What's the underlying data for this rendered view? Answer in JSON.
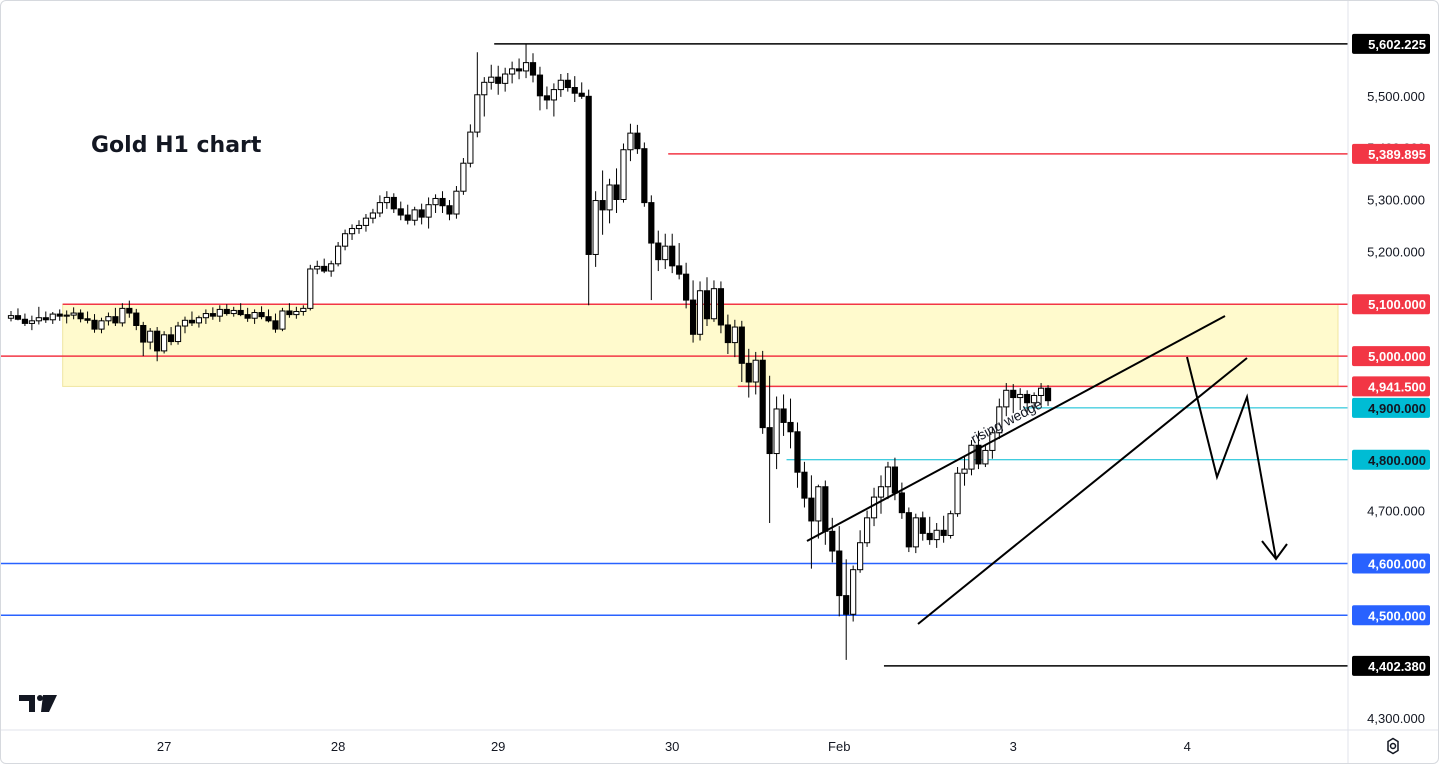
{
  "chart_data": {
    "type": "candlestick",
    "title": "Gold H1 chart",
    "timeframe": "H1",
    "y_axis": {
      "ticks": [
        {
          "value": 5500,
          "label": "5,500.000"
        },
        {
          "value": 5400,
          "label": "5,400.000"
        },
        {
          "value": 5300,
          "label": "5,300.000"
        },
        {
          "value": 5200,
          "label": "5,200.000"
        },
        {
          "value": 4700,
          "label": "4,700.000"
        },
        {
          "value": 4300,
          "label": "4,300.000"
        }
      ]
    },
    "x_axis": {
      "ticks": [
        {
          "index": 22,
          "label": "27"
        },
        {
          "index": 47,
          "label": "28"
        },
        {
          "index": 70,
          "label": "29"
        },
        {
          "index": 95,
          "label": "30"
        },
        {
          "index": 119,
          "label": "Feb"
        },
        {
          "index": 144,
          "label": "3"
        },
        {
          "index": 169,
          "label": "4"
        }
      ]
    },
    "price_levels": [
      {
        "value": 5602.225,
        "label": "5,602.225",
        "color": "#000000",
        "start_index": 70
      },
      {
        "value": 5389.895,
        "label": "5,389.895",
        "color": "#f23645",
        "start_index": 95
      },
      {
        "value": 5100.0,
        "label": "5,100.000",
        "color": "#f23645",
        "start_index": 8
      },
      {
        "value": 5000.0,
        "label": "5,000.000",
        "color": "#f23645",
        "start_index": 0
      },
      {
        "value": 4941.5,
        "label": "4,941.500",
        "color": "#f23645",
        "start_index": 105
      },
      {
        "value": 4900.0,
        "label": "4,900.000",
        "color": "#00bcd4",
        "start_index": 146
      },
      {
        "value": 4800.0,
        "label": "4,800.000",
        "color": "#00bcd4",
        "start_index": 112
      },
      {
        "value": 4600.0,
        "label": "4,600.000",
        "color": "#2962ff",
        "start_index": 0
      },
      {
        "value": 4500.0,
        "label": "4,500.000",
        "color": "#2962ff",
        "start_index": 0
      },
      {
        "value": 4402.38,
        "label": "4,402.380",
        "color": "#000000",
        "start_index": 126
      }
    ],
    "zones": [
      {
        "name": "resistance zone",
        "from": 4941.5,
        "to": 5100.0,
        "start_index": 8,
        "color": "#fff9c4"
      }
    ],
    "annotations": [
      {
        "text": "rising wedge",
        "type": "pattern"
      }
    ],
    "candles": [
      [
        5073,
        5087,
        5067,
        5078
      ],
      [
        5078,
        5092,
        5069,
        5071
      ],
      [
        5071,
        5082,
        5058,
        5063
      ],
      [
        5063,
        5078,
        5050,
        5068
      ],
      [
        5068,
        5095,
        5061,
        5074
      ],
      [
        5074,
        5086,
        5064,
        5070
      ],
      [
        5070,
        5085,
        5062,
        5081
      ],
      [
        5081,
        5090,
        5068,
        5077
      ],
      [
        5077,
        5088,
        5063,
        5079
      ],
      [
        5079,
        5094,
        5071,
        5083
      ],
      [
        5083,
        5090,
        5065,
        5072
      ],
      [
        5072,
        5086,
        5063,
        5069
      ],
      [
        5069,
        5081,
        5045,
        5052
      ],
      [
        5052,
        5074,
        5044,
        5068
      ],
      [
        5068,
        5084,
        5059,
        5076
      ],
      [
        5076,
        5093,
        5058,
        5064
      ],
      [
        5064,
        5102,
        5057,
        5092
      ],
      [
        5092,
        5107,
        5074,
        5083
      ],
      [
        5083,
        5091,
        5050,
        5059
      ],
      [
        5059,
        5066,
        5000,
        5027
      ],
      [
        5027,
        5054,
        5013,
        5048
      ],
      [
        5048,
        5056,
        4990,
        5010
      ],
      [
        5010,
        5048,
        5005,
        5041
      ],
      [
        5041,
        5056,
        5021,
        5028
      ],
      [
        5028,
        5066,
        5022,
        5058
      ],
      [
        5058,
        5076,
        5044,
        5069
      ],
      [
        5069,
        5086,
        5058,
        5064
      ],
      [
        5064,
        5078,
        5055,
        5074
      ],
      [
        5074,
        5090,
        5062,
        5082
      ],
      [
        5082,
        5094,
        5070,
        5077
      ],
      [
        5077,
        5098,
        5066,
        5090
      ],
      [
        5090,
        5100,
        5078,
        5082
      ],
      [
        5082,
        5095,
        5076,
        5088
      ],
      [
        5088,
        5102,
        5077,
        5080
      ],
      [
        5080,
        5093,
        5066,
        5073
      ],
      [
        5073,
        5090,
        5062,
        5084
      ],
      [
        5084,
        5096,
        5071,
        5076
      ],
      [
        5076,
        5090,
        5065,
        5068
      ],
      [
        5068,
        5082,
        5045,
        5052
      ],
      [
        5052,
        5093,
        5048,
        5087
      ],
      [
        5087,
        5102,
        5074,
        5080
      ],
      [
        5080,
        5095,
        5072,
        5086
      ],
      [
        5086,
        5098,
        5078,
        5092
      ],
      [
        5092,
        5176,
        5088,
        5168
      ],
      [
        5168,
        5184,
        5158,
        5173
      ],
      [
        5173,
        5188,
        5160,
        5164
      ],
      [
        5164,
        5184,
        5153,
        5178
      ],
      [
        5178,
        5220,
        5173,
        5212
      ],
      [
        5212,
        5244,
        5204,
        5236
      ],
      [
        5236,
        5254,
        5224,
        5246
      ],
      [
        5246,
        5262,
        5236,
        5252
      ],
      [
        5252,
        5274,
        5240,
        5266
      ],
      [
        5266,
        5284,
        5256,
        5276
      ],
      [
        5276,
        5310,
        5268,
        5296
      ],
      [
        5296,
        5318,
        5284,
        5306
      ],
      [
        5306,
        5314,
        5276,
        5284
      ],
      [
        5284,
        5298,
        5262,
        5272
      ],
      [
        5272,
        5292,
        5254,
        5262
      ],
      [
        5262,
        5288,
        5252,
        5282
      ],
      [
        5282,
        5294,
        5254,
        5268
      ],
      [
        5268,
        5306,
        5246,
        5292
      ],
      [
        5292,
        5312,
        5276,
        5304
      ],
      [
        5304,
        5318,
        5276,
        5290
      ],
      [
        5290,
        5301,
        5262,
        5274
      ],
      [
        5274,
        5328,
        5265,
        5318
      ],
      [
        5318,
        5382,
        5311,
        5372
      ],
      [
        5372,
        5447,
        5364,
        5432
      ],
      [
        5432,
        5586,
        5422,
        5504
      ],
      [
        5504,
        5538,
        5462,
        5528
      ],
      [
        5528,
        5562,
        5514,
        5538
      ],
      [
        5538,
        5560,
        5504,
        5526
      ],
      [
        5526,
        5556,
        5510,
        5544
      ],
      [
        5544,
        5568,
        5526,
        5554
      ],
      [
        5554,
        5574,
        5534,
        5550
      ],
      [
        5550,
        5602,
        5536,
        5566
      ],
      [
        5566,
        5584,
        5528,
        5542
      ],
      [
        5542,
        5558,
        5474,
        5502
      ],
      [
        5502,
        5520,
        5476,
        5494
      ],
      [
        5494,
        5526,
        5462,
        5514
      ],
      [
        5514,
        5544,
        5500,
        5532
      ],
      [
        5532,
        5546,
        5510,
        5518
      ],
      [
        5518,
        5540,
        5490,
        5507
      ],
      [
        5507,
        5528,
        5496,
        5501
      ],
      [
        5501,
        5514,
        5098,
        5196
      ],
      [
        5196,
        5318,
        5172,
        5300
      ],
      [
        5300,
        5358,
        5234,
        5282
      ],
      [
        5282,
        5342,
        5256,
        5330
      ],
      [
        5330,
        5362,
        5276,
        5302
      ],
      [
        5302,
        5410,
        5296,
        5398
      ],
      [
        5398,
        5448,
        5376,
        5430
      ],
      [
        5430,
        5446,
        5390,
        5400
      ],
      [
        5400,
        5412,
        5288,
        5296
      ],
      [
        5296,
        5310,
        5108,
        5218
      ],
      [
        5218,
        5242,
        5164,
        5186
      ],
      [
        5186,
        5236,
        5168,
        5212
      ],
      [
        5212,
        5236,
        5160,
        5174
      ],
      [
        5174,
        5218,
        5148,
        5158
      ],
      [
        5158,
        5180,
        5092,
        5108
      ],
      [
        5108,
        5146,
        5026,
        5042
      ],
      [
        5042,
        5144,
        5030,
        5126
      ],
      [
        5126,
        5152,
        5058,
        5072
      ],
      [
        5072,
        5146,
        5066,
        5130
      ],
      [
        5130,
        5144,
        5044,
        5060
      ],
      [
        5060,
        5080,
        5004,
        5026
      ],
      [
        5026,
        5070,
        4998,
        5056
      ],
      [
        5056,
        5068,
        4950,
        4986
      ],
      [
        4986,
        5014,
        4920,
        4950
      ],
      [
        4950,
        5008,
        4926,
        4992
      ],
      [
        4992,
        5010,
        4850,
        4862
      ],
      [
        4862,
        4962,
        4678,
        4812
      ],
      [
        4812,
        4922,
        4782,
        4898
      ],
      [
        4898,
        4926,
        4846,
        4872
      ],
      [
        4872,
        4918,
        4822,
        4854
      ],
      [
        4854,
        4872,
        4746,
        4776
      ],
      [
        4776,
        4796,
        4708,
        4726
      ],
      [
        4726,
        4770,
        4590,
        4682
      ],
      [
        4682,
        4752,
        4648,
        4748
      ],
      [
        4748,
        4760,
        4636,
        4662
      ],
      [
        4662,
        4688,
        4602,
        4624
      ],
      [
        4624,
        4672,
        4498,
        4538
      ],
      [
        4538,
        4608,
        4414,
        4502
      ],
      [
        4502,
        4596,
        4488,
        4588
      ],
      [
        4588,
        4664,
        4582,
        4640
      ],
      [
        4640,
        4702,
        4632,
        4688
      ],
      [
        4688,
        4746,
        4672,
        4728
      ],
      [
        4728,
        4770,
        4696,
        4748
      ],
      [
        4748,
        4796,
        4724,
        4786
      ],
      [
        4786,
        4804,
        4722,
        4736
      ],
      [
        4736,
        4756,
        4686,
        4698
      ],
      [
        4698,
        4708,
        4622,
        4632
      ],
      [
        4632,
        4696,
        4620,
        4688
      ],
      [
        4688,
        4700,
        4644,
        4658
      ],
      [
        4658,
        4690,
        4636,
        4646
      ],
      [
        4646,
        4678,
        4630,
        4664
      ],
      [
        4664,
        4692,
        4640,
        4654
      ],
      [
        4654,
        4702,
        4648,
        4696
      ],
      [
        4696,
        4786,
        4690,
        4774
      ],
      [
        4774,
        4808,
        4750,
        4782
      ],
      [
        4782,
        4838,
        4770,
        4828
      ],
      [
        4828,
        4856,
        4782,
        4792
      ],
      [
        4792,
        4828,
        4786,
        4818
      ],
      [
        4818,
        4862,
        4802,
        4852
      ],
      [
        4852,
        4918,
        4840,
        4902
      ],
      [
        4902,
        4948,
        4884,
        4934
      ],
      [
        4934,
        4946,
        4890,
        4920
      ],
      [
        4920,
        4938,
        4896,
        4926
      ],
      [
        4926,
        4934,
        4890,
        4910
      ],
      [
        4910,
        4930,
        4898,
        4924
      ],
      [
        4924,
        4948,
        4904,
        4938
      ],
      [
        4938,
        4944,
        4904,
        4914
      ]
    ]
  },
  "ui": {
    "logo": "TradingView",
    "settings_icon": "gear-icon"
  }
}
